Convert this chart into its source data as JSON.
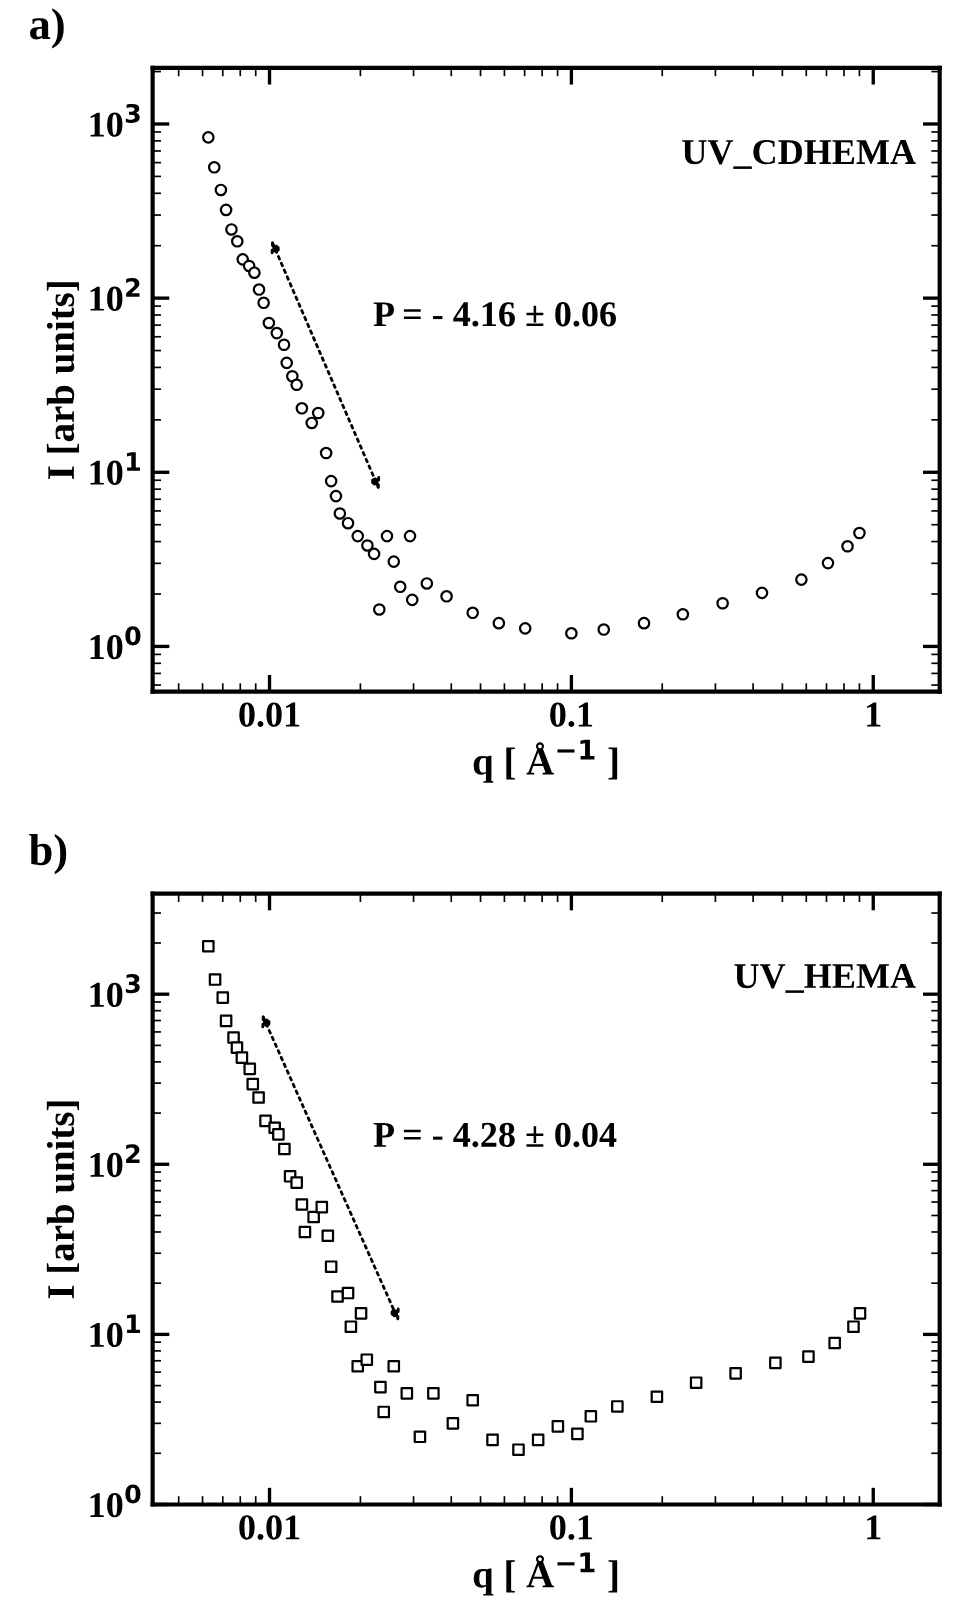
{
  "chart_data": [
    {
      "type": "scatter",
      "title": "a)",
      "xlabel": "q [ Å$^{−1}$ ]",
      "ylabel": "I [arb units]",
      "log": "xy",
      "annotations": [
        "UV_CDHEMA",
        "P = - 4.16 ± 0.06"
      ],
      "xlim": [
        0.0041,
        1.66
      ],
      "ylim": [
        0.55,
        2100
      ],
      "xticks": [
        0.01,
        0.1,
        1
      ],
      "yticks": [
        {
          "value": 1,
          "label": "10$^{0}$"
        },
        {
          "value": 10,
          "label": "10$^{1}$"
        },
        {
          "value": 100,
          "label": "10$^{2}$"
        },
        {
          "value": 1000,
          "label": "10$^{3}$"
        }
      ],
      "grid": false,
      "legend": false,
      "series": [
        {
          "color": "#000000",
          "marker": "circle",
          "x": [
            0.00627,
            0.00656,
            0.0069,
            0.00718,
            0.00748,
            0.00782,
            0.00815,
            0.00856,
            0.00891,
            0.00923,
            0.00956,
            0.00995,
            0.01057,
            0.01117,
            0.0114,
            0.0119,
            0.0123,
            0.0128,
            0.0138,
            0.0145,
            0.0154,
            0.016,
            0.0166,
            0.0171,
            0.0182,
            0.0196,
            0.0211,
            0.0222,
            0.0231,
            0.0245,
            0.0258,
            0.0271,
            0.0292,
            0.0297,
            0.0332,
            0.0386,
            0.0471,
            0.0575,
            0.0703,
            0.1,
            0.128,
            0.174,
            0.234,
            0.317,
            0.428,
            0.578,
            0.708,
            0.822,
            0.9
          ],
          "values": [
            838,
            564,
            418,
            321,
            248,
            212,
            167,
            153,
            140,
            112,
            94,
            72,
            63,
            54,
            42.5,
            35.6,
            31.8,
            23.3,
            19.2,
            21.9,
            12.9,
            8.9,
            7.3,
            5.8,
            5.1,
            4.3,
            3.8,
            3.4,
            1.63,
            4.3,
            3.07,
            2.2,
            4.3,
            1.85,
            2.3,
            1.94,
            1.56,
            1.36,
            1.27,
            1.19,
            1.25,
            1.36,
            1.53,
            1.77,
            2.03,
            2.42,
            3.01,
            3.76,
            4.48
          ]
        }
      ]
    },
    {
      "type": "scatter",
      "title": "b)",
      "xlabel": "q [ Å$^{−1}$ ]",
      "ylabel": "I [arb units]",
      "log": "xy",
      "annotations": [
        "UV_HEMA",
        "P = - 4.28 ± 0.04"
      ],
      "xlim": [
        0.0041,
        1.66
      ],
      "ylim": [
        1,
        3900
      ],
      "xticks": [
        0.01,
        0.1,
        1
      ],
      "yticks": [
        {
          "value": 1,
          "label": "10$^{0}$"
        },
        {
          "value": 10,
          "label": "10$^{1}$"
        },
        {
          "value": 100,
          "label": "10$^{2}$"
        },
        {
          "value": 1000,
          "label": "10$^{3}$"
        }
      ],
      "grid": false,
      "legend": false,
      "series": [
        {
          "color": "#000000",
          "marker": "square",
          "x": [
            0.00627,
            0.0066,
            0.007,
            0.00718,
            0.0076,
            0.0078,
            0.0081,
            0.0086,
            0.0088,
            0.0092,
            0.0097,
            0.0104,
            0.0107,
            0.0112,
            0.0117,
            0.0123,
            0.0128,
            0.0131,
            0.014,
            0.0149,
            0.0156,
            0.016,
            0.0168,
            0.0182,
            0.0186,
            0.0201,
            0.0196,
            0.021,
            0.0233,
            0.0258,
            0.0239,
            0.0285,
            0.0315,
            0.0349,
            0.0405,
            0.0471,
            0.0548,
            0.0668,
            0.0776,
            0.0902,
            0.1047,
            0.116,
            0.142,
            0.192,
            0.259,
            0.35,
            0.474,
            0.61,
            0.745,
            0.86,
            0.904
          ],
          "values": [
            1914,
            1219,
            955,
            697,
            556,
            485,
            424,
            364,
            296,
            247,
            180,
            164,
            150,
            123,
            85,
            78,
            58,
            40,
            49,
            56,
            38,
            25,
            16.7,
            17.5,
            11.1,
            13.3,
            6.5,
            7.1,
            4.9,
            6.5,
            3.5,
            4.5,
            2.5,
            4.5,
            3.0,
            4.1,
            2.4,
            2.1,
            2.4,
            2.88,
            2.6,
            3.3,
            3.77,
            4.3,
            5.2,
            5.9,
            6.8,
            7.4,
            8.9,
            11.1,
            13.3
          ]
        }
      ]
    }
  ]
}
